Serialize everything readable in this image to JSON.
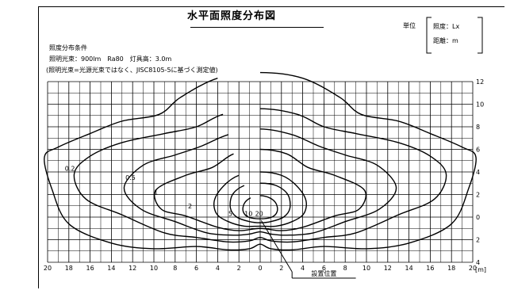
{
  "title": "水平面照度分布図",
  "unit": {
    "label": "単位",
    "lines": [
      "照度：Lx",
      "距離：m"
    ]
  },
  "conditions": {
    "heading": "照度分布条件",
    "spec": "照明光束：900lm　Ra80　灯具高：3.0m",
    "note": "(照明光束=光源光束ではなく、JISC8105-5に基づく測定値)"
  },
  "x_ticks": [
    "20",
    "18",
    "16",
    "14",
    "12",
    "10",
    "8",
    "6",
    "4",
    "2",
    "0",
    "2",
    "4",
    "6",
    "8",
    "10",
    "12",
    "14",
    "16",
    "18",
    "20"
  ],
  "x_unit": "[m]",
  "y_ticks_top": [
    "12",
    "10",
    "8",
    "6",
    "4",
    "2",
    "0"
  ],
  "y_ticks_bottom": [
    "2",
    "4"
  ],
  "contour_labels": [
    "0.2",
    "0.5",
    "1",
    "2",
    "5",
    "10",
    "20"
  ],
  "fixture_label": "設置位置",
  "colors": {
    "line": "#000000",
    "background": "#ffffff"
  }
}
